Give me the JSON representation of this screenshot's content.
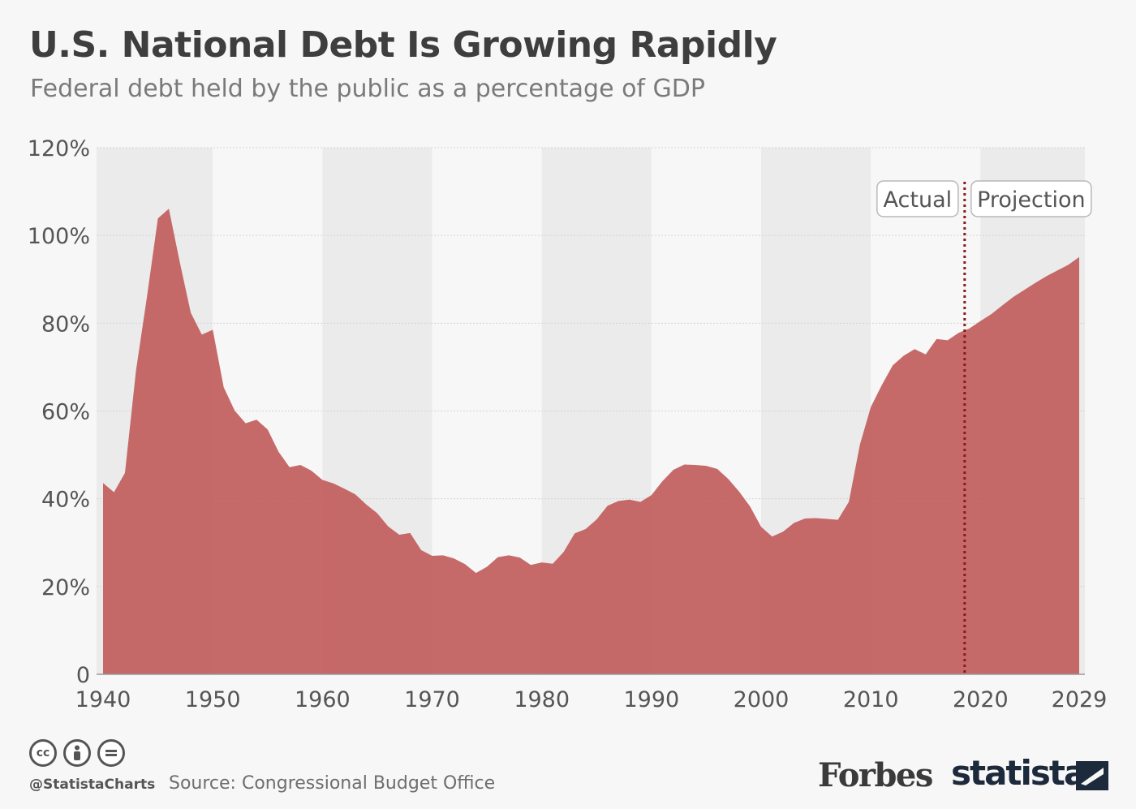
{
  "header": {
    "title": "U.S. National Debt Is Growing Rapidly",
    "subtitle": "Federal debt held by the public as a percentage of GDP"
  },
  "colors": {
    "area_fill": "#c25e5e",
    "band_dark": "#ebebeb",
    "band_light": "#f7f7f7",
    "divider": "#8b1a1a",
    "text": "#444444"
  },
  "chart_data": {
    "type": "area",
    "title": "U.S. National Debt Is Growing Rapidly",
    "subtitle": "Federal debt held by the public as a percentage of GDP",
    "xlabel": "",
    "ylabel": "",
    "xlim": [
      1940,
      2029
    ],
    "ylim": [
      0,
      120
    ],
    "y_ticks": [
      0,
      20,
      40,
      60,
      80,
      100,
      120
    ],
    "y_tick_labels": [
      "0",
      "20%",
      "40%",
      "60%",
      "80%",
      "100%",
      "120%"
    ],
    "x_ticks": [
      1940,
      1950,
      1960,
      1970,
      1980,
      1990,
      2000,
      2010,
      2020,
      2029
    ],
    "x_tick_labels": [
      "1940",
      "1950",
      "1960",
      "1970",
      "1980",
      "1990",
      "2000",
      "2010",
      "2020",
      "2029"
    ],
    "divider_year": 2019,
    "annotations": [
      {
        "text": "Actual",
        "side": "left-of-divider"
      },
      {
        "text": "Projection",
        "side": "right-of-divider"
      }
    ],
    "series": [
      {
        "name": "Federal debt held by the public (% of GDP)",
        "x": [
          1940,
          1941,
          1942,
          1943,
          1944,
          1945,
          1946,
          1947,
          1948,
          1949,
          1950,
          1951,
          1952,
          1953,
          1954,
          1955,
          1956,
          1957,
          1958,
          1959,
          1960,
          1961,
          1962,
          1963,
          1964,
          1965,
          1966,
          1967,
          1968,
          1969,
          1970,
          1971,
          1972,
          1973,
          1974,
          1975,
          1976,
          1977,
          1978,
          1979,
          1980,
          1981,
          1982,
          1983,
          1984,
          1985,
          1986,
          1987,
          1988,
          1989,
          1990,
          1991,
          1992,
          1993,
          1994,
          1995,
          1996,
          1997,
          1998,
          1999,
          2000,
          2001,
          2002,
          2003,
          2004,
          2005,
          2006,
          2007,
          2008,
          2009,
          2010,
          2011,
          2012,
          2013,
          2014,
          2015,
          2016,
          2017,
          2018,
          2019,
          2020,
          2021,
          2022,
          2023,
          2024,
          2025,
          2026,
          2027,
          2028,
          2029
        ],
        "values": [
          43.6,
          41.5,
          45.9,
          69.2,
          86.0,
          103.9,
          106.1,
          93.9,
          82.4,
          77.4,
          78.5,
          65.4,
          60.1,
          57.2,
          58.0,
          55.8,
          50.7,
          47.2,
          47.7,
          46.4,
          44.3,
          43.5,
          42.3,
          41.0,
          38.7,
          36.7,
          33.7,
          31.8,
          32.2,
          28.3,
          27.0,
          27.1,
          26.4,
          25.1,
          23.1,
          24.5,
          26.7,
          27.1,
          26.6,
          24.9,
          25.5,
          25.2,
          27.9,
          32.1,
          33.1,
          35.3,
          38.4,
          39.5,
          39.8,
          39.3,
          40.8,
          44.0,
          46.6,
          47.8,
          47.7,
          47.5,
          46.8,
          44.5,
          41.6,
          38.2,
          33.6,
          31.4,
          32.5,
          34.5,
          35.5,
          35.6,
          35.4,
          35.2,
          39.3,
          52.3,
          60.9,
          65.9,
          70.4,
          72.6,
          74.1,
          72.9,
          76.4,
          76.1,
          77.8,
          78.8,
          80.5,
          82.1,
          84.1,
          86.0,
          87.6,
          89.2,
          90.7,
          92.0,
          93.3,
          95.1
        ]
      }
    ]
  },
  "footer": {
    "license_icons": [
      "cc",
      "by",
      "eq"
    ],
    "handle": "@StatistaCharts",
    "source": "Source: Congressional Budget Office",
    "forbes_logo": "Forbes",
    "statista_logo": "statista"
  }
}
